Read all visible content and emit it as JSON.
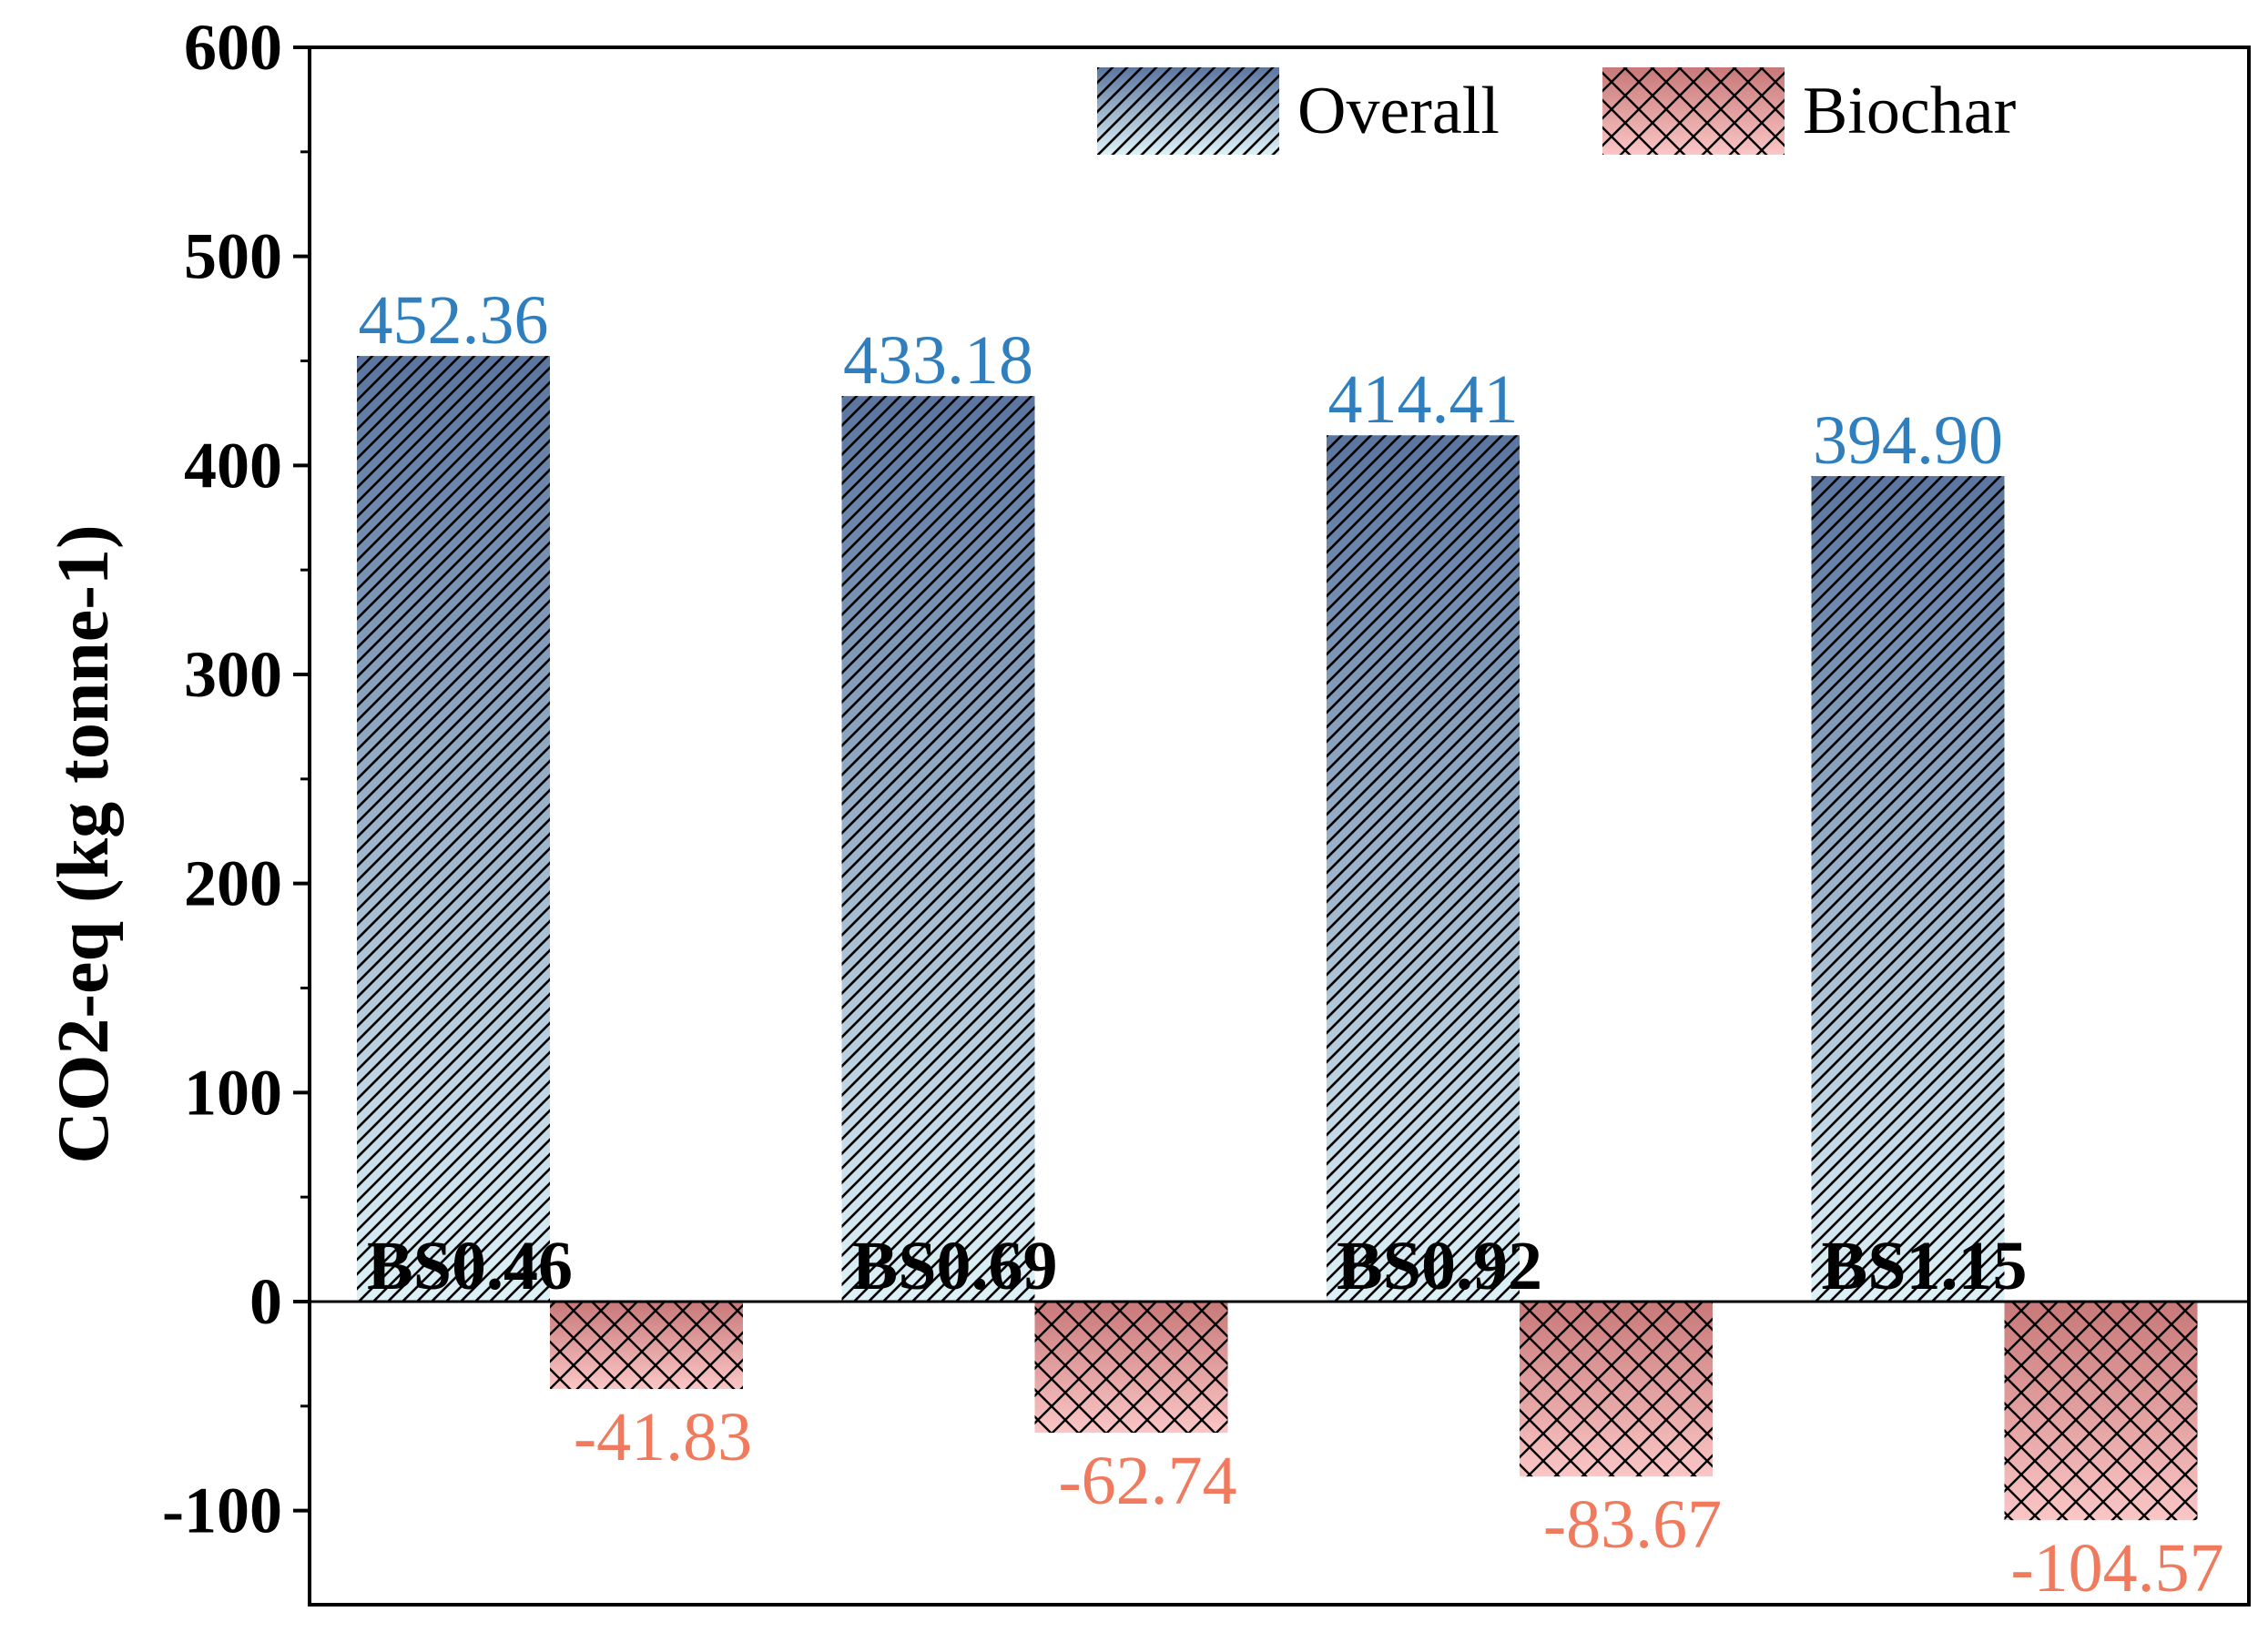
{
  "chart_data": {
    "type": "bar",
    "title": "",
    "xlabel": "",
    "ylabel": "CO2-eq (kg tonne-1)",
    "ylim": [
      -145,
      600
    ],
    "yticks": [
      -100,
      0,
      100,
      200,
      300,
      400,
      500,
      600
    ],
    "categories": [
      "BS0.46",
      "BS0.69",
      "BS0.92",
      "BS1.15"
    ],
    "series": [
      {
        "name": "Overall",
        "values": [
          452.36,
          433.18,
          414.41,
          394.9
        ],
        "labels": [
          "452.36",
          "433.18",
          "414.41",
          "394.90"
        ],
        "pattern": "diagonal-hatch",
        "color_top": "#5a76a0",
        "color_bottom": "#ddf1f7",
        "label_color": "#2f7fbf"
      },
      {
        "name": "Biochar",
        "values": [
          -41.83,
          -62.74,
          -83.67,
          -104.57
        ],
        "labels": [
          "-41.83",
          "-62.74",
          "-83.67",
          "-104.57"
        ],
        "pattern": "cross-hatch",
        "color_top": "#c87878",
        "color_bottom": "#fbc6c6",
        "label_color": "#f07a5e"
      }
    ],
    "legend_position": "top-right",
    "grid": false
  }
}
